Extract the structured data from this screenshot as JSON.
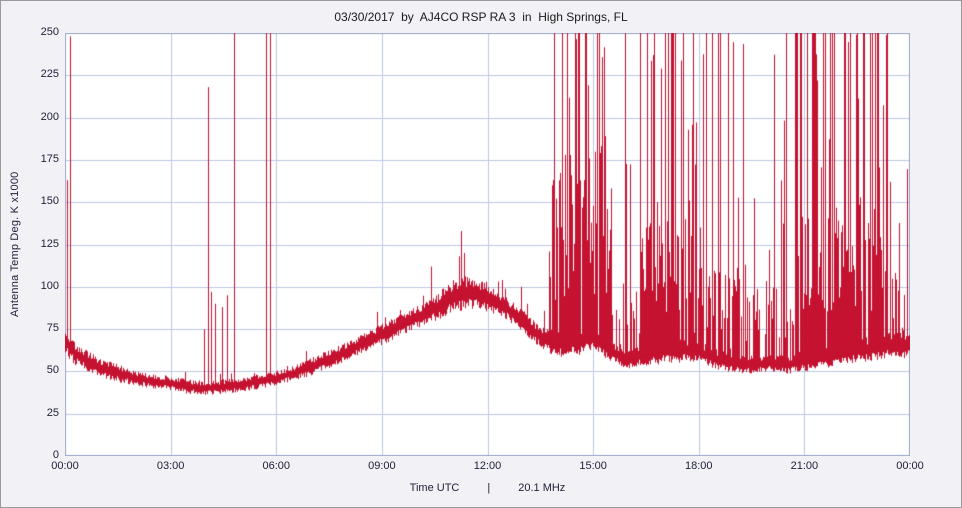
{
  "chart_data": {
    "type": "line",
    "title": "03/30/2017  by  AJ4CO RSP RA 3  in  High Springs, FL",
    "xlabel": "Time UTC",
    "separator": "|",
    "frequency_label": "20.1 MHz",
    "ylabel": "Antenna Temp Deg. K x1000",
    "xlim": [
      0,
      24
    ],
    "ylim": [
      0,
      250
    ],
    "grid": true,
    "legend": "none",
    "line_color": "#C41230",
    "grid_color": "#bdc9e2",
    "axis_color": "#9aa8c8",
    "background": "#f1f1f6",
    "plot_background": "#ffffff",
    "y_ticks": [
      0,
      25,
      50,
      75,
      100,
      125,
      150,
      175,
      200,
      225,
      250
    ],
    "x_ticks": [
      {
        "hour": 0,
        "label": "00:00"
      },
      {
        "hour": 3,
        "label": "03:00"
      },
      {
        "hour": 6,
        "label": "06:00"
      },
      {
        "hour": 9,
        "label": "09:00"
      },
      {
        "hour": 12,
        "label": "12:00"
      },
      {
        "hour": 15,
        "label": "15:00"
      },
      {
        "hour": 18,
        "label": "18:00"
      },
      {
        "hour": 21,
        "label": "21:00"
      },
      {
        "hour": 24,
        "label": "00:00"
      }
    ],
    "baseline": [
      [
        0.0,
        68,
        8
      ],
      [
        0.3,
        60,
        6
      ],
      [
        1.0,
        52,
        5
      ],
      [
        1.5,
        49,
        5
      ],
      [
        2.0,
        46,
        4
      ],
      [
        2.5,
        44,
        4
      ],
      [
        3.0,
        43,
        4
      ],
      [
        3.5,
        41,
        4
      ],
      [
        4.0,
        40,
        4
      ],
      [
        4.5,
        41,
        4
      ],
      [
        5.0,
        42,
        4
      ],
      [
        5.5,
        44,
        4
      ],
      [
        6.0,
        46,
        4
      ],
      [
        6.5,
        49,
        4
      ],
      [
        7.0,
        53,
        5
      ],
      [
        7.5,
        57,
        5
      ],
      [
        8.0,
        62,
        5
      ],
      [
        8.5,
        67,
        5
      ],
      [
        9.0,
        72,
        6
      ],
      [
        9.5,
        77,
        6
      ],
      [
        10.0,
        82,
        6
      ],
      [
        10.5,
        87,
        7
      ],
      [
        11.0,
        94,
        9
      ],
      [
        11.5,
        97,
        9
      ],
      [
        12.0,
        94,
        8
      ],
      [
        12.5,
        88,
        6
      ],
      [
        13.0,
        80,
        6
      ],
      [
        13.5,
        70,
        6
      ],
      [
        14.0,
        66,
        7
      ],
      [
        14.5,
        68,
        8
      ],
      [
        15.0,
        70,
        8
      ],
      [
        15.5,
        62,
        6
      ],
      [
        16.0,
        57,
        5
      ],
      [
        16.5,
        60,
        6
      ],
      [
        17.0,
        62,
        7
      ],
      [
        17.5,
        63,
        7
      ],
      [
        18.0,
        62,
        6
      ],
      [
        18.5,
        57,
        6
      ],
      [
        19.0,
        55,
        5
      ],
      [
        19.5,
        54,
        5
      ],
      [
        20.0,
        55,
        5
      ],
      [
        20.5,
        54,
        5
      ],
      [
        21.0,
        56,
        6
      ],
      [
        21.5,
        58,
        6
      ],
      [
        22.0,
        60,
        6
      ],
      [
        22.5,
        62,
        6
      ],
      [
        23.0,
        64,
        7
      ],
      [
        23.5,
        66,
        7
      ],
      [
        24.0,
        65,
        7
      ]
    ],
    "spikes": [
      [
        0.07,
        163
      ],
      [
        0.13,
        248
      ],
      [
        3.95,
        75
      ],
      [
        4.05,
        218
      ],
      [
        4.15,
        97
      ],
      [
        4.25,
        90
      ],
      [
        4.45,
        88
      ],
      [
        4.6,
        95
      ],
      [
        4.8,
        252
      ],
      [
        5.71,
        252
      ],
      [
        5.82,
        252
      ],
      [
        10.4,
        112
      ],
      [
        11.2,
        118
      ],
      [
        11.25,
        133
      ],
      [
        11.33,
        120
      ],
      [
        12.4,
        104
      ],
      [
        12.95,
        100
      ]
    ],
    "interference_segments": [
      {
        "start": 13.75,
        "end": 15.55,
        "mass_prob": 0.85,
        "mass_min": 90,
        "mass_max": 180,
        "spike_prob": 0.5,
        "spike_min": 120,
        "p250": 0.4
      },
      {
        "start": 15.55,
        "end": 16.35,
        "mass_prob": 0.4,
        "mass_min": 70,
        "mass_max": 110,
        "spike_prob": 0.18,
        "spike_min": 100,
        "p250": 0.15
      },
      {
        "start": 16.35,
        "end": 18.15,
        "mass_prob": 0.85,
        "mass_min": 85,
        "mass_max": 140,
        "spike_prob": 0.45,
        "spike_min": 110,
        "p250": 0.3
      },
      {
        "start": 18.15,
        "end": 19.4,
        "mass_prob": 0.6,
        "mass_min": 75,
        "mass_max": 115,
        "spike_prob": 0.35,
        "spike_min": 100,
        "p250": 0.25
      },
      {
        "start": 19.4,
        "end": 20.75,
        "mass_prob": 0.5,
        "mass_min": 70,
        "mass_max": 105,
        "spike_prob": 0.3,
        "spike_min": 95,
        "p250": 0.2
      },
      {
        "start": 20.75,
        "end": 23.25,
        "mass_prob": 0.85,
        "mass_min": 85,
        "mass_max": 150,
        "spike_prob": 0.55,
        "spike_min": 110,
        "p250": 0.45
      },
      {
        "start": 23.25,
        "end": 24.0,
        "mass_prob": 0.5,
        "mass_min": 70,
        "mass_max": 110,
        "spike_prob": 0.3,
        "spike_min": 95,
        "p250": 0.25
      }
    ]
  }
}
